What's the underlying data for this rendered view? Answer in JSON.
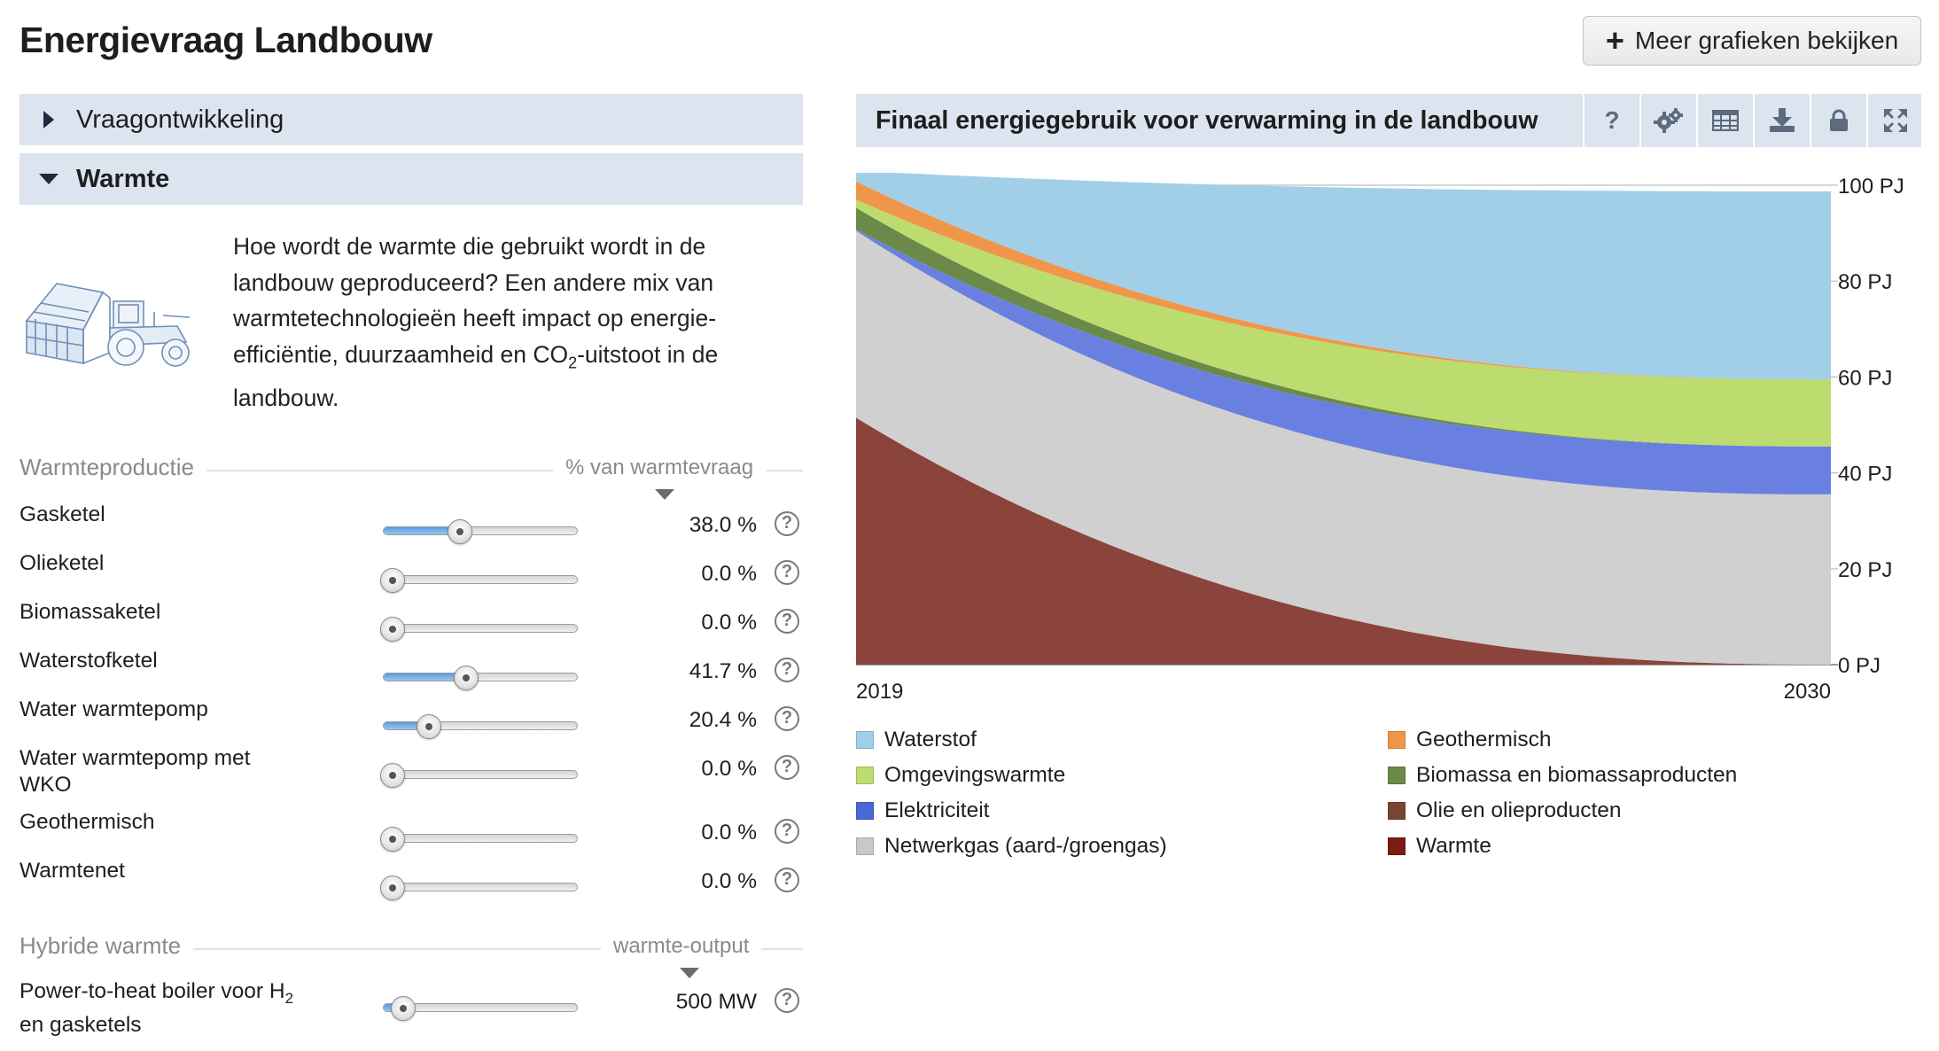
{
  "page": {
    "title": "Energievraag Landbouw",
    "more_button": "Meer grafieken bekijken"
  },
  "accordion": [
    {
      "label": "Vraagontwikkeling",
      "expanded": false
    },
    {
      "label": "Warmte",
      "expanded": true
    }
  ],
  "intro": {
    "text_before": "Hoe wordt de warmte die gebruikt wordt in de landbouw geproduceerd? Een andere mix van warmtetechnologieën heeft impact op energie-efficiëntie, duurzaamheid en CO",
    "subscript": "2",
    "text_after": "-uitstoot in de landbouw."
  },
  "warmteproductie": {
    "title": "Warmteproductie",
    "unit": "% van warmtevraag",
    "sliders": [
      {
        "label": "Gasketel",
        "value": "38.0 %",
        "fraction": 0.38
      },
      {
        "label": "Olieketel",
        "value": "0.0 %",
        "fraction": 0.0
      },
      {
        "label": "Biomassaketel",
        "value": "0.0 %",
        "fraction": 0.0
      },
      {
        "label": "Waterstofketel",
        "value": "41.7 %",
        "fraction": 0.417
      },
      {
        "label": "Water warmtepomp",
        "value": "20.4 %",
        "fraction": 0.204
      },
      {
        "label": "Water warmtepomp met WKO",
        "value": "0.0 %",
        "fraction": 0.0
      },
      {
        "label": "Geothermisch",
        "value": "0.0 %",
        "fraction": 0.0
      },
      {
        "label": "Warmtenet",
        "value": "0.0 %",
        "fraction": 0.0
      }
    ]
  },
  "hybride": {
    "title": "Hybride warmte",
    "unit": "warmte-output",
    "sliders": [
      {
        "label_before": "Power-to-heat boiler voor H",
        "label_sub": "2",
        "label_after": " en gasketels",
        "value": "500 MW",
        "fraction": 0.06
      }
    ]
  },
  "chart_header": {
    "title": "Finaal energiegebruik voor verwarming in de landbouw",
    "help_label": "?",
    "buttons": [
      "settings-icon",
      "table-icon",
      "download-icon",
      "lock-icon",
      "fullscreen-icon"
    ]
  },
  "chart_data": {
    "type": "area",
    "x": [
      2019,
      2030
    ],
    "x_tick_labels": [
      "2019",
      "2030"
    ],
    "y_unit": "PJ",
    "ylim": [
      0,
      100
    ],
    "y_ticks": [
      "0 PJ",
      "20 PJ",
      "40 PJ",
      "60 PJ",
      "80 PJ",
      "100 PJ"
    ],
    "grid": true,
    "legend_position": "bottom",
    "series": [
      {
        "name": "Warmte",
        "color": "#8b443c",
        "values": [
          51.5,
          0
        ]
      },
      {
        "name": "Olie en olieproducten",
        "color": "#6f3b26",
        "values": [
          0,
          0
        ]
      },
      {
        "name": "Netwerkgas (aard-/groengas)",
        "color": "#d0d0d0",
        "values": [
          39,
          35.5
        ]
      },
      {
        "name": "Elektriciteit",
        "color": "#6a80e0",
        "values": [
          0.3,
          10
        ]
      },
      {
        "name": "Biomassa en biomassaproducten",
        "color": "#6b8a4a",
        "values": [
          4.5,
          0
        ]
      },
      {
        "name": "Omgevingswarmte",
        "color": "#bcdc70",
        "values": [
          1.7,
          14
        ]
      },
      {
        "name": "Geothermisch",
        "color": "#f0964a",
        "values": [
          3.8,
          0
        ]
      },
      {
        "name": "Waterstof",
        "color": "#a2cfe8",
        "values": [
          2.2,
          39.2
        ]
      }
    ],
    "legend": [
      {
        "name": "Waterstof",
        "color": "#a2cfe8"
      },
      {
        "name": "Geothermisch",
        "color": "#f0964a"
      },
      {
        "name": "Omgevingswarmte",
        "color": "#bcdc70"
      },
      {
        "name": "Biomassa en biomassaproducten",
        "color": "#6b8a4a"
      },
      {
        "name": "Elektriciteit",
        "color": "#4a66d8"
      },
      {
        "name": "Olie en olieproducten",
        "color": "#7a4530"
      },
      {
        "name": "Netwerkgas (aard-/groengas)",
        "color": "#c8c8c8"
      },
      {
        "name": "Warmte",
        "color": "#7a1c12"
      }
    ]
  }
}
